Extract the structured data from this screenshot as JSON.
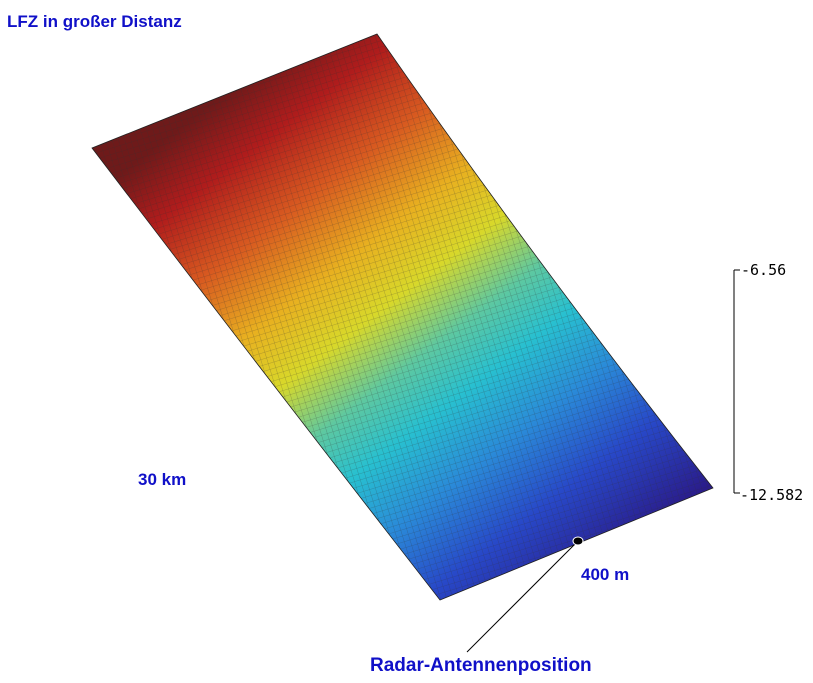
{
  "title": "LFZ in großer Distanz",
  "labels": {
    "range_short": "30 km",
    "range_width": "400 m",
    "antenna": "Radar-Antennenposition"
  },
  "scale": {
    "top": "-6.56",
    "bottom": "-12.582"
  },
  "colors": {
    "text": "#1010c8",
    "surface_top": "#7a1a1a",
    "surface_bottom": "#2a1a8a",
    "grid": "#404040"
  },
  "surface": {
    "colormap": "jet",
    "value_min": -12.582,
    "value_max": -6.56
  }
}
